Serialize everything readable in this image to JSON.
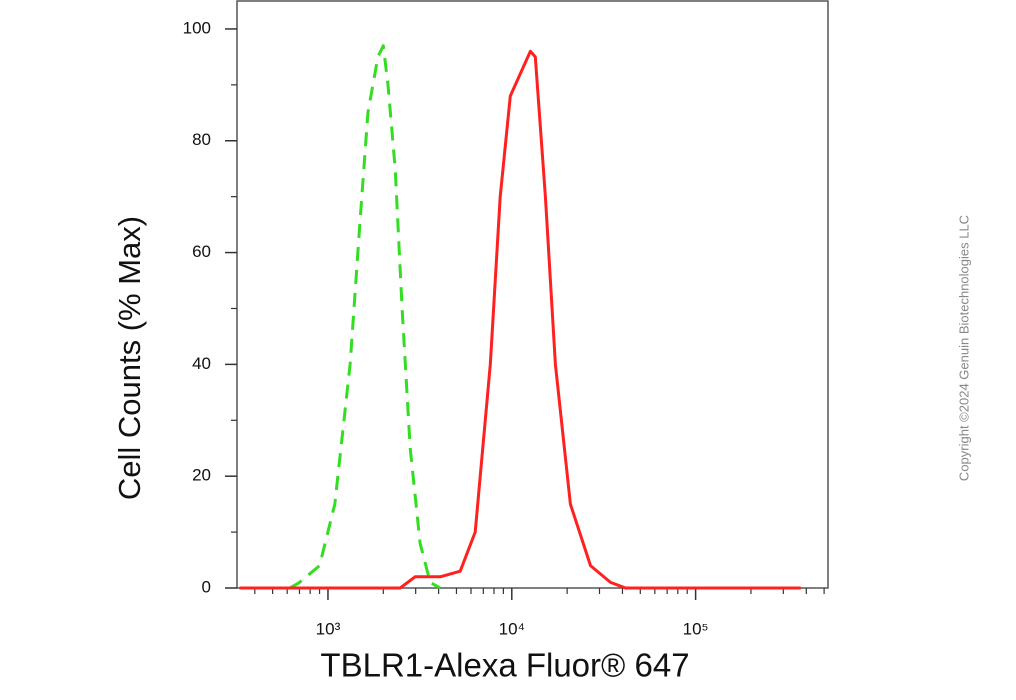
{
  "chart_data": {
    "type": "line",
    "xlabel": "TBLR1-Alexa Fluor® 647",
    "ylabel": "Cell Counts (% Max)",
    "copyright": "Copyright ©2024 Genuin Biotechnologies LLC",
    "xscale": "log",
    "xlim": [
      320,
      525000
    ],
    "ylim": [
      0,
      105
    ],
    "xticks": [
      {
        "value": 1000,
        "label": "10³"
      },
      {
        "value": 10000,
        "label": "10⁴"
      },
      {
        "value": 100000,
        "label": "10⁵"
      }
    ],
    "xminorticks": [
      400,
      500,
      600,
      700,
      800,
      900,
      2000,
      3000,
      4000,
      5000,
      6000,
      7000,
      8000,
      9000,
      20000,
      30000,
      40000,
      50000,
      60000,
      70000,
      80000,
      90000,
      200000,
      300000,
      400000,
      500000
    ],
    "yticks": [
      0,
      20,
      40,
      60,
      80,
      100
    ],
    "yminorticks": [
      10,
      30,
      50,
      70,
      90
    ],
    "series": [
      {
        "color": "#33dd22",
        "dashed": true,
        "x": [
          620,
          700,
          900,
          1090,
          1320,
          1490,
          1650,
          1870,
          2000,
          2120,
          2320,
          2530,
          2800,
          3170,
          3600,
          4080
        ],
        "values": [
          0,
          1,
          4,
          15,
          40,
          65,
          85,
          95,
          97,
          90,
          75,
          50,
          25,
          8,
          1,
          0
        ]
      },
      {
        "color": "#ff2020",
        "dashed": false,
        "x": [
          330,
          2470,
          2980,
          4080,
          5240,
          6320,
          7640,
          8650,
          9820,
          11120,
          12620,
          13430,
          15240,
          17260,
          20840,
          26790,
          34430,
          41560,
          373300
        ],
        "values": [
          0,
          0,
          2,
          2,
          3,
          10,
          40,
          70,
          88,
          92,
          96,
          95,
          70,
          40,
          15,
          4,
          1,
          0,
          0
        ]
      }
    ]
  }
}
